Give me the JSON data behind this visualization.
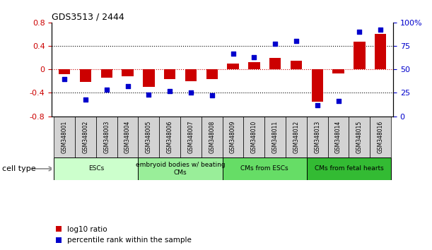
{
  "title": "GDS3513 / 2444",
  "samples": [
    "GSM348001",
    "GSM348002",
    "GSM348003",
    "GSM348004",
    "GSM348005",
    "GSM348006",
    "GSM348007",
    "GSM348008",
    "GSM348009",
    "GSM348010",
    "GSM348011",
    "GSM348012",
    "GSM348013",
    "GSM348014",
    "GSM348015",
    "GSM348016"
  ],
  "log10_ratio": [
    -0.08,
    -0.22,
    -0.14,
    -0.12,
    -0.3,
    -0.17,
    -0.2,
    -0.16,
    0.1,
    0.12,
    0.2,
    0.15,
    -0.55,
    -0.07,
    0.47,
    0.6
  ],
  "percentile_rank": [
    40,
    18,
    28,
    32,
    23,
    27,
    25,
    22,
    67,
    63,
    77,
    80,
    12,
    16,
    90,
    92
  ],
  "cell_types": [
    {
      "label": "ESCs",
      "start": 0,
      "end": 4,
      "color": "#ccffcc"
    },
    {
      "label": "embryoid bodies w/ beating\nCMs",
      "start": 4,
      "end": 8,
      "color": "#99ee99"
    },
    {
      "label": "CMs from ESCs",
      "start": 8,
      "end": 12,
      "color": "#66dd66"
    },
    {
      "label": "CMs from fetal hearts",
      "start": 12,
      "end": 16,
      "color": "#33bb33"
    }
  ],
  "bar_color": "#cc0000",
  "dot_color": "#0000cc",
  "ylim_left": [
    -0.8,
    0.8
  ],
  "ylim_right": [
    0,
    100
  ],
  "yticks_left": [
    -0.8,
    -0.4,
    0.0,
    0.4,
    0.8
  ],
  "ytick_labels_left": [
    "-0.8",
    "-0.4",
    "0",
    "0.4",
    "0.8"
  ],
  "yticks_right": [
    0,
    25,
    50,
    75,
    100
  ],
  "ytick_labels_right": [
    "0",
    "25",
    "50",
    "75",
    "100%"
  ],
  "hline_dotted": [
    0.4,
    -0.4
  ],
  "hline_red_dotted": 0.0,
  "legend_log10": "log10 ratio",
  "legend_percentile": "percentile rank within the sample",
  "xlabel_cell_type": "cell type"
}
